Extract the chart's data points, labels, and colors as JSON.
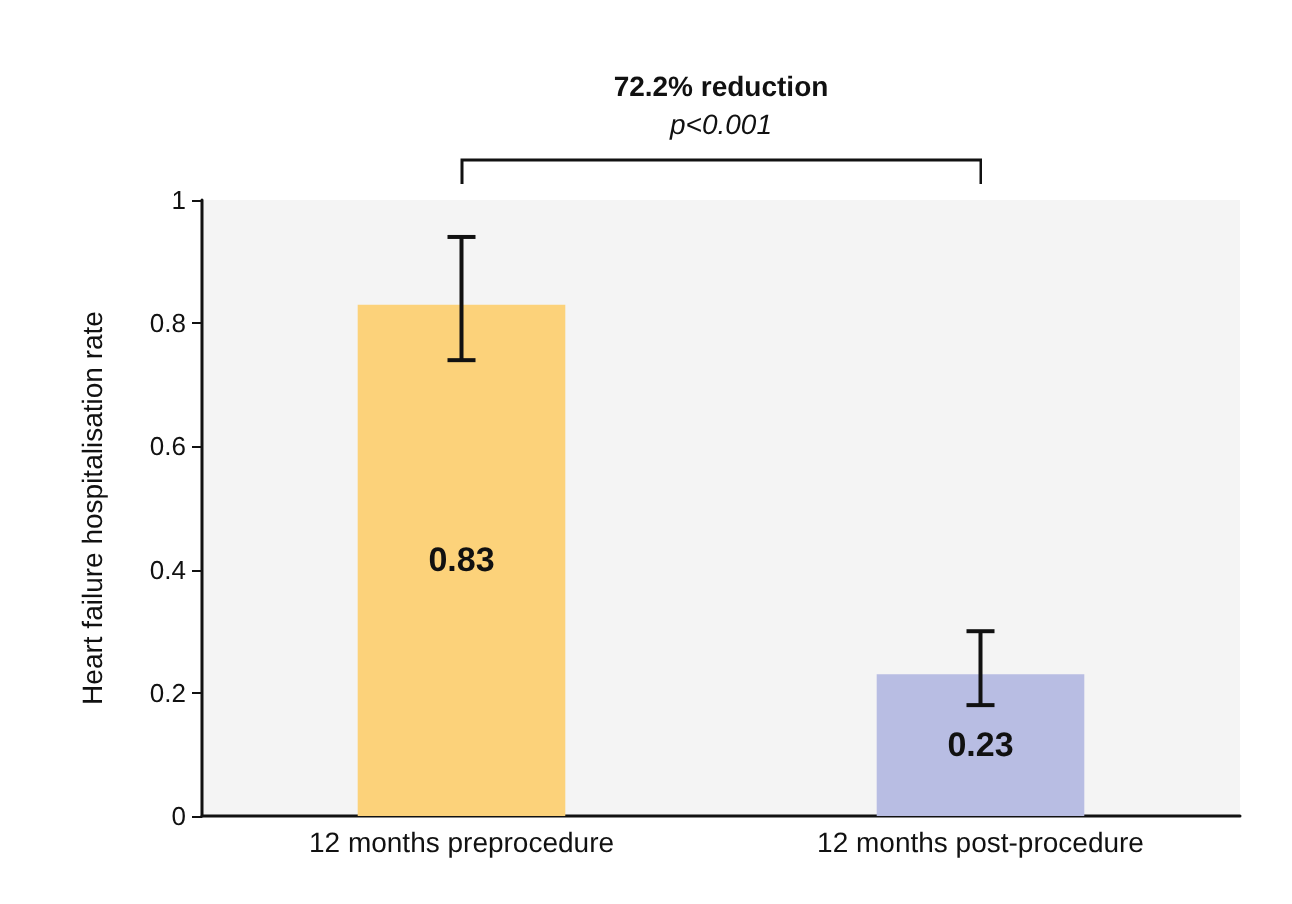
{
  "chart_data": {
    "type": "bar",
    "ylabel": "Heart failure hospitalisation rate",
    "categories": [
      "12 months preprocedure",
      "12 months post-procedure"
    ],
    "values": [
      0.83,
      0.23
    ],
    "colors": [
      "#fcd27a",
      "#b8bde3"
    ],
    "errors": [
      [
        0.74,
        0.94
      ],
      [
        0.18,
        0.3
      ]
    ],
    "data_labels": true,
    "ylim": [
      0,
      1
    ],
    "yticks": [
      0,
      0.2,
      0.4,
      0.6,
      0.8,
      1
    ],
    "grid": false,
    "annotations": [
      "72.2% reduction",
      "p<0.001"
    ]
  }
}
